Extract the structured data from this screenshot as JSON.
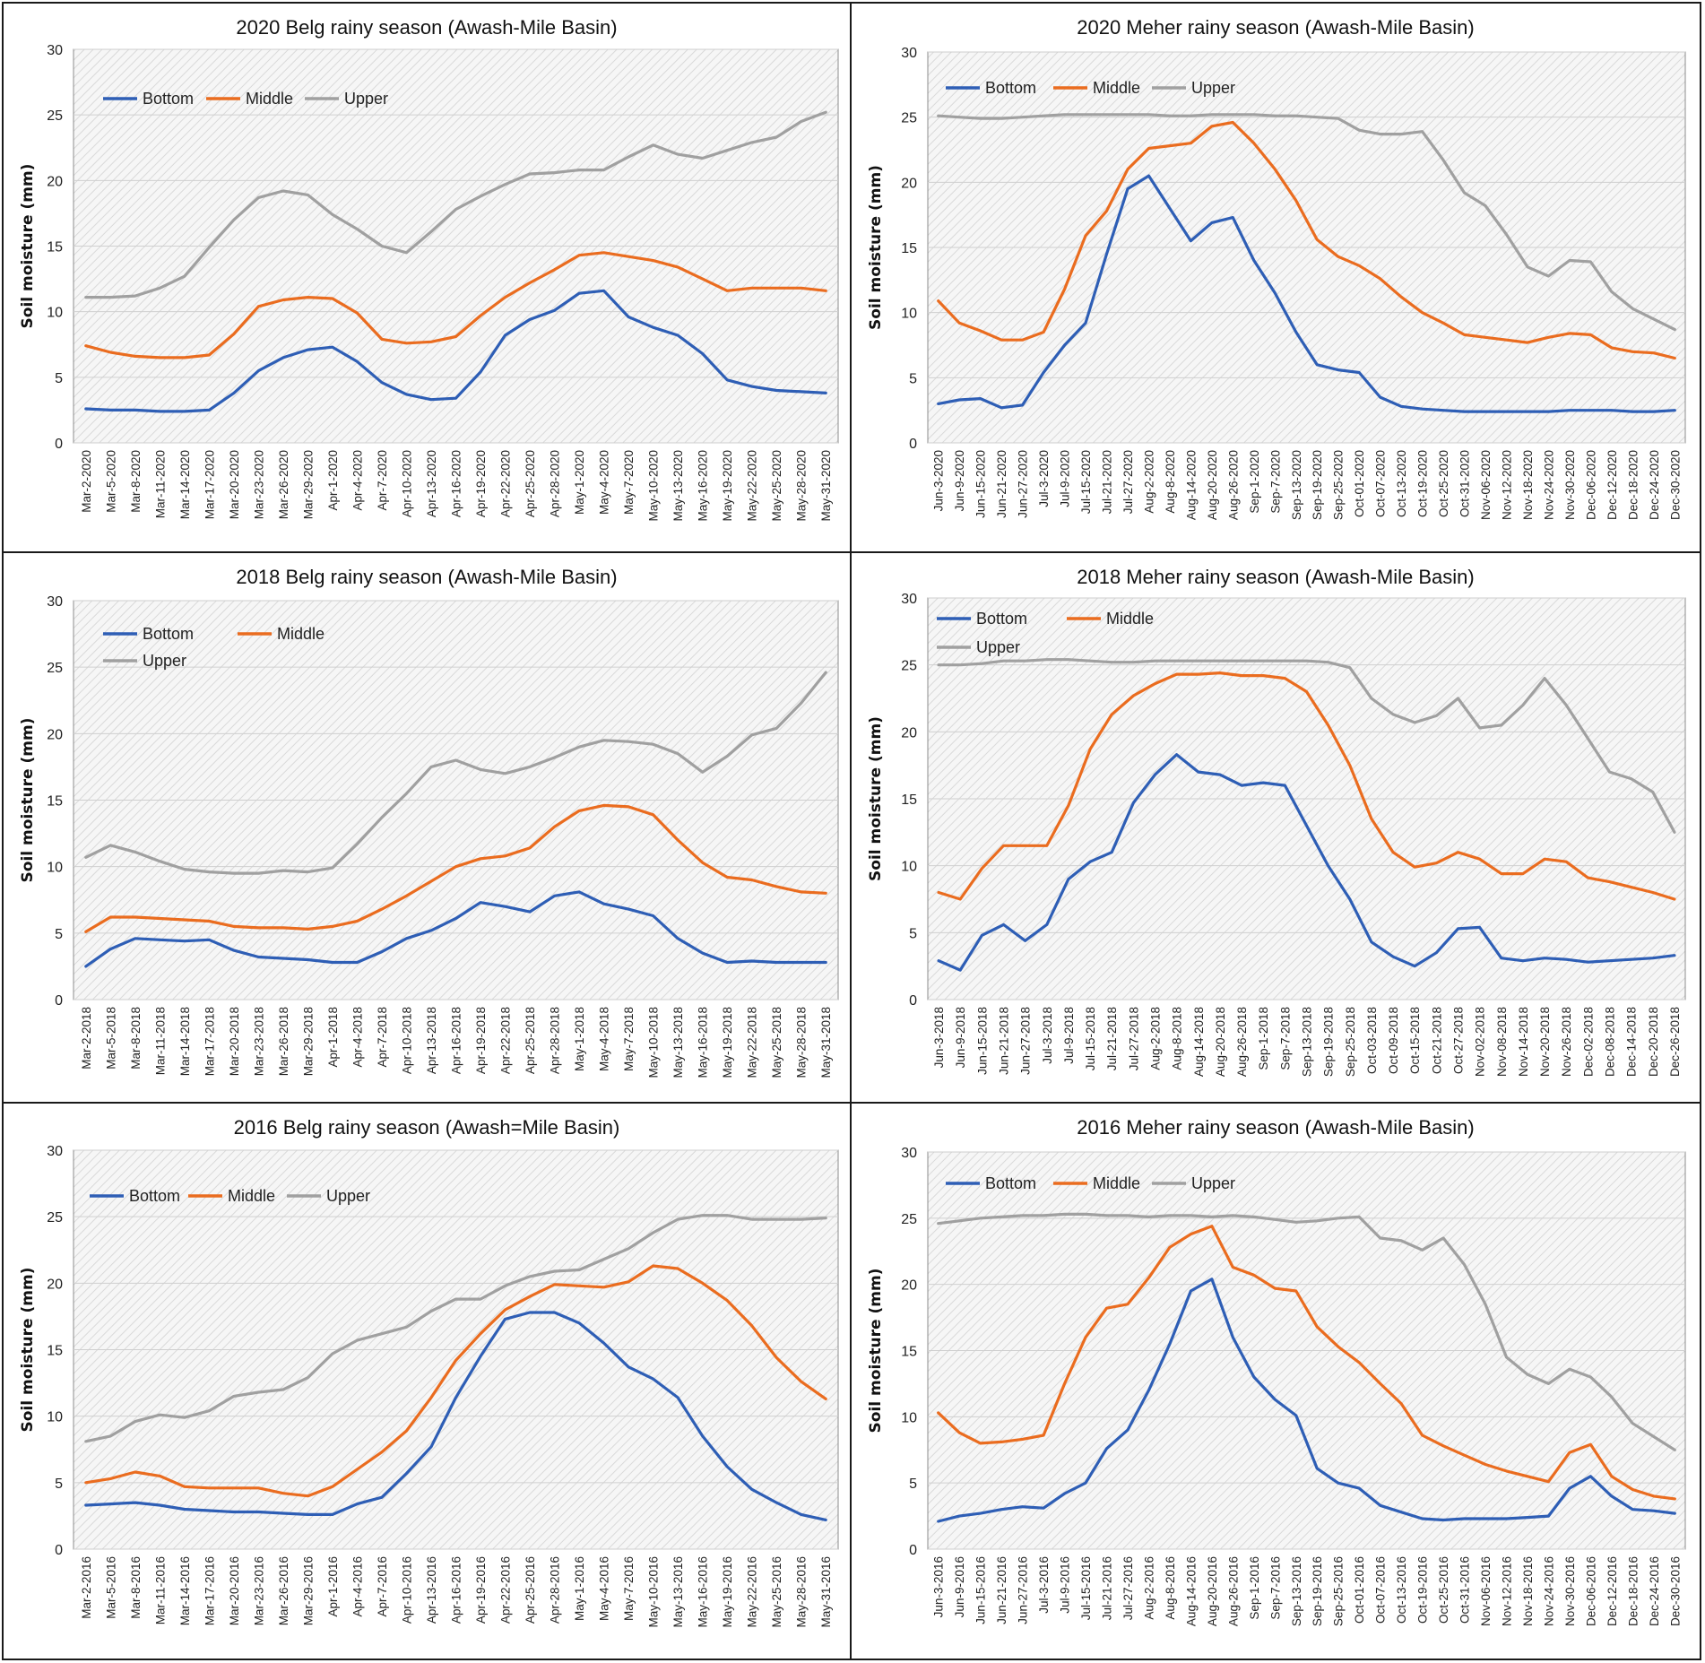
{
  "colors": {
    "Bottom": "#2e5eb5",
    "Middle": "#ea6c1f",
    "Upper": "#a0a0a0"
  },
  "chart_data": [
    {
      "type": "line",
      "title": "2020 Belg rainy season (Awash-Mile Basin)",
      "ylabel": "Soil moisture (mm)",
      "xlabel": "",
      "ylim": [
        0,
        30
      ],
      "yticks": [
        "0",
        "5",
        "10",
        "15",
        "20",
        "25",
        "30"
      ],
      "legend": "top-left, one row",
      "categories": [
        "Mar-2-2020",
        "Mar-5-2020",
        "Mar-8-2020",
        "Mar-11-2020",
        "Mar-14-2020",
        "Mar-17-2020",
        "Mar-20-2020",
        "Mar-23-2020",
        "Mar-26-2020",
        "Mar-29-2020",
        "Apr-1-2020",
        "Apr-4-2020",
        "Apr-7-2020",
        "Apr-10-2020",
        "Apr-13-2020",
        "Apr-16-2020",
        "Apr-19-2020",
        "Apr-22-2020",
        "Apr-25-2020",
        "Apr-28-2020",
        "May-1-2020",
        "May-4-2020",
        "May-7-2020",
        "May-10-2020",
        "May-13-2020",
        "May-16-2020",
        "May-19-2020",
        "May-22-2020",
        "May-25-2020",
        "May-28-2020",
        "May-31-2020"
      ],
      "series": [
        {
          "name": "Bottom",
          "values": [
            2.6,
            2.5,
            2.5,
            2.4,
            2.4,
            2.5,
            3.8,
            5.5,
            6.5,
            7.1,
            7.3,
            6.2,
            4.6,
            3.7,
            3.3,
            3.4,
            5.4,
            8.2,
            9.4,
            10.1,
            11.4,
            11.6,
            9.6,
            8.8,
            8.2,
            6.8,
            4.8,
            4.3,
            4.0,
            3.9,
            3.8
          ]
        },
        {
          "name": "Middle",
          "values": [
            7.4,
            6.9,
            6.6,
            6.5,
            6.5,
            6.7,
            8.3,
            10.4,
            10.9,
            11.1,
            11.0,
            9.9,
            7.9,
            7.6,
            7.7,
            8.1,
            9.7,
            11.1,
            12.2,
            13.2,
            14.3,
            14.5,
            14.2,
            13.9,
            13.4,
            12.5,
            11.6,
            11.8,
            11.8,
            11.8,
            11.6
          ]
        },
        {
          "name": "Upper",
          "values": [
            11.1,
            11.1,
            11.2,
            11.8,
            12.7,
            14.9,
            17.0,
            18.7,
            19.2,
            18.9,
            17.4,
            16.3,
            15.0,
            14.5,
            16.1,
            17.8,
            18.8,
            19.7,
            20.5,
            20.6,
            20.8,
            20.8,
            21.8,
            22.7,
            22.0,
            21.7,
            22.3,
            22.9,
            23.3,
            24.5,
            25.2
          ]
        }
      ]
    },
    {
      "type": "line",
      "title": "2020 Meher rainy season (Awash-Mile Basin)",
      "ylabel": "Soil moisture (mm)",
      "xlabel": "",
      "ylim": [
        0,
        30
      ],
      "yticks": [
        "0",
        "5",
        "10",
        "15",
        "20",
        "25",
        "30"
      ],
      "legend": "top-left, one row",
      "categories": [
        "Jun-3-2020",
        "Jun-9-2020",
        "Jun-15-2020",
        "Jun-21-2020",
        "Jun-27-2020",
        "Jul-3-2020",
        "Jul-9-2020",
        "Jul-15-2020",
        "Jul-21-2020",
        "Jul-27-2020",
        "Aug-2-2020",
        "Aug-8-2020",
        "Aug-14-2020",
        "Aug-20-2020",
        "Aug-26-2020",
        "Sep-1-2020",
        "Sep-7-2020",
        "Sep-13-2020",
        "Sep-19-2020",
        "Sep-25-2020",
        "Oct-01-2020",
        "Oct-07-2020",
        "Oct-13-2020",
        "Oct-19-2020",
        "Oct-25-2020",
        "Oct-31-2020",
        "Nov-06-2020",
        "Nov-12-2020",
        "Nov-18-2020",
        "Nov-24-2020",
        "Nov-30-2020",
        "Dec-06-2020",
        "Dec-12-2020",
        "Dec-18-2020",
        "Dec-24-2020",
        "Dec-30-2020"
      ],
      "series": [
        {
          "name": "Bottom",
          "values": [
            3.0,
            3.3,
            3.4,
            2.7,
            2.9,
            5.4,
            7.5,
            9.2,
            14.5,
            19.5,
            20.5,
            18.0,
            15.5,
            16.9,
            17.3,
            14.0,
            11.5,
            8.5,
            6.0,
            5.6,
            5.4,
            3.5,
            2.8,
            2.6,
            2.5,
            2.4,
            2.4,
            2.4,
            2.4,
            2.4,
            2.5,
            2.5,
            2.5,
            2.4,
            2.4,
            2.5
          ]
        },
        {
          "name": "Middle",
          "values": [
            10.9,
            9.2,
            8.6,
            7.9,
            7.9,
            8.5,
            11.8,
            15.9,
            17.8,
            21.0,
            22.6,
            22.8,
            23.0,
            24.3,
            24.6,
            23.0,
            21.0,
            18.6,
            15.6,
            14.3,
            13.6,
            12.6,
            11.2,
            10.0,
            9.2,
            8.3,
            8.1,
            7.9,
            7.7,
            8.1,
            8.4,
            8.3,
            7.3,
            7.0,
            6.9,
            6.5
          ]
        },
        {
          "name": "Upper",
          "values": [
            25.1,
            25.0,
            24.9,
            24.9,
            25.0,
            25.1,
            25.2,
            25.2,
            25.2,
            25.2,
            25.2,
            25.1,
            25.1,
            25.2,
            25.2,
            25.2,
            25.1,
            25.1,
            25.0,
            24.9,
            24.0,
            23.7,
            23.7,
            23.9,
            21.7,
            19.2,
            18.2,
            16.0,
            13.5,
            12.8,
            14.0,
            13.9,
            11.6,
            10.3,
            9.5,
            8.7
          ]
        }
      ]
    },
    {
      "type": "line",
      "title": "2018 Belg rainy season (Awash-Mile Basin)",
      "ylabel": "Soil moisture (mm)",
      "xlabel": "",
      "ylim": [
        0,
        30
      ],
      "yticks": [
        "0",
        "5",
        "10",
        "15",
        "20",
        "25",
        "30"
      ],
      "legend": "top-left, two rows",
      "categories": [
        "Mar-2-2018",
        "Mar-5-2018",
        "Mar-8-2018",
        "Mar-11-2018",
        "Mar-14-2018",
        "Mar-17-2018",
        "Mar-20-2018",
        "Mar-23-2018",
        "Mar-26-2018",
        "Mar-29-2018",
        "Apr-1-2018",
        "Apr-4-2018",
        "Apr-7-2018",
        "Apr-10-2018",
        "Apr-13-2018",
        "Apr-16-2018",
        "Apr-19-2018",
        "Apr-22-2018",
        "Apr-25-2018",
        "Apr-28-2018",
        "May-1-2018",
        "May-4-2018",
        "May-7-2018",
        "May-10-2018",
        "May-13-2018",
        "May-16-2018",
        "May-19-2018",
        "May-22-2018",
        "May-25-2018",
        "May-28-2018",
        "May-31-2018"
      ],
      "series": [
        {
          "name": "Bottom",
          "values": [
            2.5,
            3.8,
            4.6,
            4.5,
            4.4,
            4.5,
            3.7,
            3.2,
            3.1,
            3.0,
            2.8,
            2.8,
            3.6,
            4.6,
            5.2,
            6.1,
            7.3,
            7.0,
            6.6,
            7.8,
            8.1,
            7.2,
            6.8,
            6.3,
            4.6,
            3.5,
            2.8,
            2.9,
            2.8,
            2.8,
            2.8
          ]
        },
        {
          "name": "Middle",
          "values": [
            5.1,
            6.2,
            6.2,
            6.1,
            6.0,
            5.9,
            5.5,
            5.4,
            5.4,
            5.3,
            5.5,
            5.9,
            6.8,
            7.8,
            8.9,
            10.0,
            10.6,
            10.8,
            11.4,
            13.0,
            14.2,
            14.6,
            14.5,
            13.9,
            12.0,
            10.3,
            9.2,
            9.0,
            8.5,
            8.1,
            8.0
          ]
        },
        {
          "name": "Upper",
          "values": [
            10.7,
            11.6,
            11.1,
            10.4,
            9.8,
            9.6,
            9.5,
            9.5,
            9.7,
            9.6,
            9.9,
            11.7,
            13.7,
            15.5,
            17.5,
            18.0,
            17.3,
            17.0,
            17.5,
            18.2,
            19.0,
            19.5,
            19.4,
            19.2,
            18.5,
            17.1,
            18.3,
            19.9,
            20.4,
            22.3,
            24.6
          ]
        }
      ]
    },
    {
      "type": "line",
      "title": "2018 Meher rainy season (Awash-Mile Basin)",
      "ylabel": "Soil moisture (mm)",
      "xlabel": "",
      "ylim": [
        0,
        30
      ],
      "yticks": [
        "0",
        "5",
        "10",
        "15",
        "20",
        "25",
        "30"
      ],
      "legend": "top-left, two rows",
      "categories": [
        "Jun-3-2018",
        "Jun-9-2018",
        "Jun-15-2018",
        "Jun-21-2018",
        "Jun-27-2018",
        "Jul-3-2018",
        "Jul-9-2018",
        "Jul-15-2018",
        "Jul-21-2018",
        "Jul-27-2018",
        "Aug-2-2018",
        "Aug-8-2018",
        "Aug-14-2018",
        "Aug-20-2018",
        "Aug-26-2018",
        "Sep-1-2018",
        "Sep-7-2018",
        "Sep-13-2018",
        "Sep-19-2018",
        "Sep-25-2018",
        "Oct-03-2018",
        "Oct-09-2018",
        "Oct-15-2018",
        "Oct-21-2018",
        "Oct-27-2018",
        "Nov-02-2018",
        "Nov-08-2018",
        "Nov-14-2018",
        "Nov-20-2018",
        "Nov-26-2018",
        "Dec-02-2018",
        "Dec-08-2018",
        "Dec-14-2018",
        "Dec-20-2018",
        "Dec-26-2018"
      ],
      "series": [
        {
          "name": "Bottom",
          "values": [
            2.9,
            2.2,
            4.8,
            5.6,
            4.4,
            5.6,
            9.0,
            10.3,
            11.0,
            14.7,
            16.8,
            18.3,
            17.0,
            16.8,
            16.0,
            16.2,
            16.0,
            13.0,
            10.0,
            7.5,
            4.3,
            3.2,
            2.5,
            3.5,
            5.3,
            5.4,
            3.1,
            2.9,
            3.1,
            3.0,
            2.8,
            2.9,
            3.0,
            3.1,
            3.3
          ]
        },
        {
          "name": "Middle",
          "values": [
            8.0,
            7.5,
            9.8,
            11.5,
            11.5,
            11.5,
            14.5,
            18.7,
            21.3,
            22.7,
            23.6,
            24.3,
            24.3,
            24.4,
            24.2,
            24.2,
            24.0,
            23.0,
            20.5,
            17.5,
            13.5,
            11.0,
            9.9,
            10.2,
            11.0,
            10.5,
            9.4,
            9.4,
            10.5,
            10.3,
            9.1,
            8.8,
            8.4,
            8.0,
            7.5
          ]
        },
        {
          "name": "Upper",
          "values": [
            25.0,
            25.0,
            25.1,
            25.3,
            25.3,
            25.4,
            25.4,
            25.3,
            25.2,
            25.2,
            25.3,
            25.3,
            25.3,
            25.3,
            25.3,
            25.3,
            25.3,
            25.3,
            25.2,
            24.8,
            22.5,
            21.3,
            20.7,
            21.2,
            22.5,
            20.3,
            20.5,
            22.0,
            24.0,
            22.0,
            19.5,
            17.0,
            16.5,
            15.5,
            12.5
          ]
        }
      ]
    },
    {
      "type": "line",
      "title": "2016 Belg rainy season (Awash=Mile Basin)",
      "ylabel": "Soil moisture (mm)",
      "xlabel": "",
      "ylim": [
        0,
        30
      ],
      "yticks": [
        "0",
        "5",
        "10",
        "15",
        "20",
        "25",
        "30"
      ],
      "legend": "top-left, one row",
      "categories": [
        "Mar-2-2016",
        "Mar-5-2016",
        "Mar-8-2016",
        "Mar-11-2016",
        "Mar-14-2016",
        "Mar-17-2016",
        "Mar-20-2016",
        "Mar-23-2016",
        "Mar-26-2016",
        "Mar-29-2016",
        "Apr-1-2016",
        "Apr-4-2016",
        "Apr-7-2016",
        "Apr-10-2016",
        "Apr-13-2016",
        "Apr-16-2016",
        "Apr-19-2016",
        "Apr-22-2016",
        "Apr-25-2016",
        "Apr-28-2016",
        "May-1-2016",
        "May-4-2016",
        "May-7-2016",
        "May-10-2016",
        "May-13-2016",
        "May-16-2016",
        "May-19-2016",
        "May-22-2016",
        "May-25-2016",
        "May-28-2016",
        "May-31-2016"
      ],
      "series": [
        {
          "name": "Bottom",
          "values": [
            3.3,
            3.4,
            3.5,
            3.3,
            3.0,
            2.9,
            2.8,
            2.8,
            2.7,
            2.6,
            2.6,
            3.4,
            3.9,
            5.7,
            7.7,
            11.4,
            14.5,
            17.3,
            17.8,
            17.8,
            17.0,
            15.5,
            13.7,
            12.8,
            11.4,
            8.5,
            6.2,
            4.5,
            3.5,
            2.6,
            2.2
          ]
        },
        {
          "name": "Middle",
          "values": [
            5.0,
            5.3,
            5.8,
            5.5,
            4.7,
            4.6,
            4.6,
            4.6,
            4.2,
            4.0,
            4.7,
            6.0,
            7.3,
            8.9,
            11.4,
            14.2,
            16.2,
            18.0,
            19.0,
            19.9,
            19.8,
            19.7,
            20.1,
            21.3,
            21.1,
            20.0,
            18.7,
            16.8,
            14.4,
            12.6,
            11.3
          ]
        },
        {
          "name": "Upper",
          "values": [
            8.1,
            8.5,
            9.6,
            10.1,
            9.9,
            10.4,
            11.5,
            11.8,
            12.0,
            12.9,
            14.7,
            15.7,
            16.2,
            16.7,
            17.9,
            18.8,
            18.8,
            19.8,
            20.5,
            20.9,
            21.0,
            21.8,
            22.6,
            23.8,
            24.8,
            25.1,
            25.1,
            24.8,
            24.8,
            24.8,
            24.9
          ]
        }
      ]
    },
    {
      "type": "line",
      "title": "2016 Meher rainy season (Awash-Mile Basin)",
      "ylabel": "Soil moisture (mm)",
      "xlabel": "",
      "ylim": [
        0,
        30
      ],
      "yticks": [
        "0",
        "5",
        "10",
        "15",
        "20",
        "25",
        "30"
      ],
      "legend": "top-left, one row",
      "categories": [
        "Jun-3-2016",
        "Jun-9-2016",
        "Jun-15-2016",
        "Jun-21-2016",
        "Jun-27-2016",
        "Jul-3-2016",
        "Jul-9-2016",
        "Jul-15-2016",
        "Jul-21-2016",
        "Jul-27-2016",
        "Aug-2-2016",
        "Aug-8-2016",
        "Aug-14-2016",
        "Aug-20-2016",
        "Aug-26-2016",
        "Sep-1-2016",
        "Sep-7-2016",
        "Sep-13-2016",
        "Sep-19-2016",
        "Sep-25-2016",
        "Oct-01-2016",
        "Oct-07-2016",
        "Oct-13-2016",
        "Oct-19-2016",
        "Oct-25-2016",
        "Oct-31-2016",
        "Nov-06-2016",
        "Nov-12-2016",
        "Nov-18-2016",
        "Nov-24-2016",
        "Nov-30-2016",
        "Dec-06-2016",
        "Dec-12-2016",
        "Dec-18-2016",
        "Dec-24-2016",
        "Dec-30-2016"
      ],
      "series": [
        {
          "name": "Bottom",
          "values": [
            2.1,
            2.5,
            2.7,
            3.0,
            3.2,
            3.1,
            4.2,
            5.0,
            7.6,
            9.0,
            12.0,
            15.5,
            19.5,
            20.4,
            16.0,
            13.0,
            11.3,
            10.1,
            6.1,
            5.0,
            4.6,
            3.3,
            2.8,
            2.3,
            2.2,
            2.3,
            2.3,
            2.3,
            2.4,
            2.5,
            4.6,
            5.5,
            4.0,
            3.0,
            2.9,
            2.7
          ]
        },
        {
          "name": "Middle",
          "values": [
            10.3,
            8.8,
            8.0,
            8.1,
            8.3,
            8.6,
            12.5,
            16.0,
            18.2,
            18.5,
            20.5,
            22.8,
            23.8,
            24.4,
            21.3,
            20.7,
            19.7,
            19.5,
            16.8,
            15.3,
            14.1,
            12.5,
            11.0,
            8.6,
            7.8,
            7.1,
            6.4,
            5.9,
            5.5,
            5.1,
            7.3,
            7.9,
            5.5,
            4.5,
            4.0,
            3.8
          ]
        },
        {
          "name": "Upper",
          "values": [
            24.6,
            24.8,
            25.0,
            25.1,
            25.2,
            25.2,
            25.3,
            25.3,
            25.2,
            25.2,
            25.1,
            25.2,
            25.2,
            25.1,
            25.2,
            25.1,
            24.9,
            24.7,
            24.8,
            25.0,
            25.1,
            23.5,
            23.3,
            22.6,
            23.5,
            21.5,
            18.5,
            14.5,
            13.2,
            12.5,
            13.6,
            13.0,
            11.5,
            9.5,
            8.5,
            7.5
          ]
        }
      ]
    }
  ]
}
